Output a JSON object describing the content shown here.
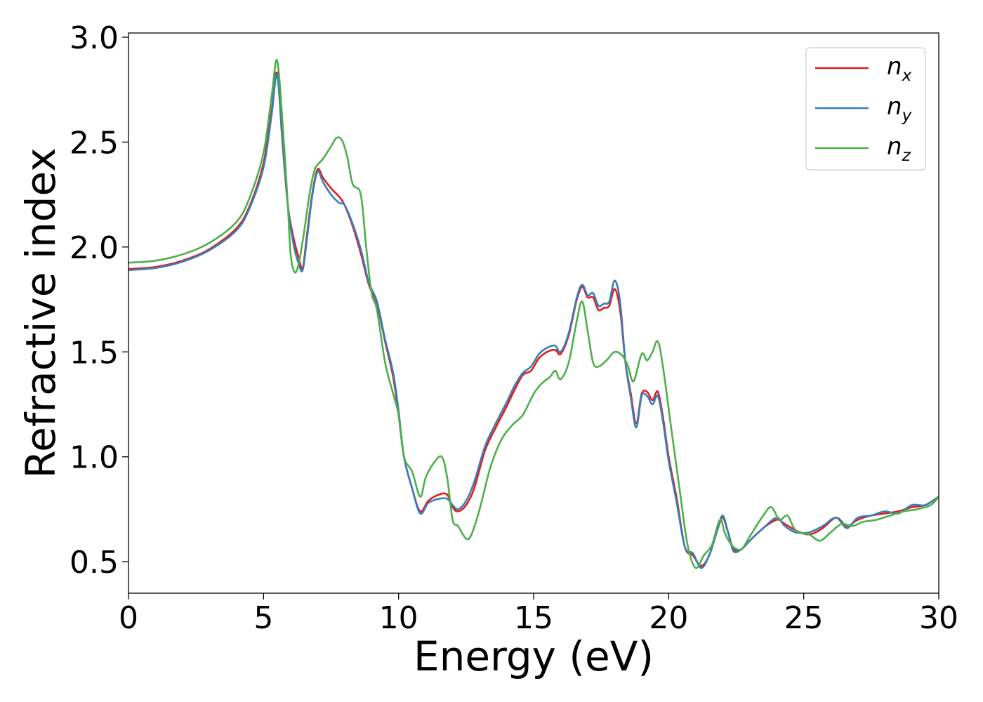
{
  "chart_data": {
    "type": "line",
    "xlabel": "Energy (eV)",
    "ylabel": "Refractive index",
    "xlim": [
      0,
      30
    ],
    "ylim": [
      0.35,
      3.02
    ],
    "xticks": [
      0,
      5,
      10,
      15,
      20,
      25,
      30
    ],
    "yticks": [
      0.5,
      1.0,
      1.5,
      2.0,
      2.5,
      3.0
    ],
    "xtick_labels": [
      "0",
      "5",
      "10",
      "15",
      "20",
      "25",
      "30"
    ],
    "ytick_labels": [
      "0.5",
      "1.0",
      "1.5",
      "2.0",
      "2.5",
      "3.0"
    ],
    "grid": false,
    "legend_position": "top-right",
    "series": [
      {
        "name": "n_x",
        "legend_base": "n",
        "legend_sub": "x",
        "color": "#e41a1c",
        "points": [
          [
            0,
            1.895
          ],
          [
            1,
            1.905
          ],
          [
            2,
            1.935
          ],
          [
            3,
            1.99
          ],
          [
            4,
            2.09
          ],
          [
            4.5,
            2.2
          ],
          [
            5,
            2.4
          ],
          [
            5.3,
            2.65
          ],
          [
            5.5,
            2.83
          ],
          [
            5.7,
            2.5
          ],
          [
            5.9,
            2.2
          ],
          [
            6.1,
            2.05
          ],
          [
            6.3,
            1.95
          ],
          [
            6.45,
            1.9
          ],
          [
            6.6,
            2.05
          ],
          [
            6.8,
            2.25
          ],
          [
            7.0,
            2.37
          ],
          [
            7.2,
            2.33
          ],
          [
            7.5,
            2.28
          ],
          [
            7.8,
            2.24
          ],
          [
            8.0,
            2.2
          ],
          [
            8.3,
            2.1
          ],
          [
            8.6,
            1.97
          ],
          [
            8.9,
            1.82
          ],
          [
            9.2,
            1.73
          ],
          [
            9.5,
            1.55
          ],
          [
            9.8,
            1.38
          ],
          [
            10.0,
            1.2
          ],
          [
            10.2,
            1.0
          ],
          [
            10.5,
            0.85
          ],
          [
            10.8,
            0.74
          ],
          [
            11.1,
            0.79
          ],
          [
            11.5,
            0.82
          ],
          [
            11.8,
            0.82
          ],
          [
            12.0,
            0.76
          ],
          [
            12.2,
            0.74
          ],
          [
            12.5,
            0.77
          ],
          [
            12.8,
            0.85
          ],
          [
            13.2,
            1.03
          ],
          [
            13.6,
            1.14
          ],
          [
            14.0,
            1.24
          ],
          [
            14.3,
            1.32
          ],
          [
            14.6,
            1.39
          ],
          [
            14.9,
            1.41
          ],
          [
            15.2,
            1.47
          ],
          [
            15.5,
            1.5
          ],
          [
            15.8,
            1.51
          ],
          [
            16.0,
            1.49
          ],
          [
            16.3,
            1.58
          ],
          [
            16.6,
            1.75
          ],
          [
            16.8,
            1.81
          ],
          [
            17.0,
            1.76
          ],
          [
            17.2,
            1.76
          ],
          [
            17.4,
            1.7
          ],
          [
            17.6,
            1.71
          ],
          [
            17.8,
            1.72
          ],
          [
            18.0,
            1.8
          ],
          [
            18.2,
            1.7
          ],
          [
            18.4,
            1.45
          ],
          [
            18.6,
            1.3
          ],
          [
            18.8,
            1.16
          ],
          [
            19.0,
            1.3
          ],
          [
            19.2,
            1.31
          ],
          [
            19.4,
            1.27
          ],
          [
            19.6,
            1.31
          ],
          [
            19.8,
            1.18
          ],
          [
            20.0,
            1.0
          ],
          [
            20.3,
            0.8
          ],
          [
            20.6,
            0.57
          ],
          [
            20.9,
            0.53
          ],
          [
            21.2,
            0.48
          ],
          [
            21.5,
            0.53
          ],
          [
            21.8,
            0.65
          ],
          [
            22.0,
            0.71
          ],
          [
            22.2,
            0.64
          ],
          [
            22.4,
            0.56
          ],
          [
            22.7,
            0.56
          ],
          [
            23.0,
            0.6
          ],
          [
            23.5,
            0.66
          ],
          [
            24.0,
            0.7
          ],
          [
            24.3,
            0.68
          ],
          [
            24.7,
            0.65
          ],
          [
            25.2,
            0.63
          ],
          [
            25.7,
            0.66
          ],
          [
            26.2,
            0.71
          ],
          [
            26.6,
            0.67
          ],
          [
            27.0,
            0.7
          ],
          [
            27.5,
            0.72
          ],
          [
            28.0,
            0.73
          ],
          [
            28.5,
            0.74
          ],
          [
            29.0,
            0.76
          ],
          [
            29.5,
            0.77
          ],
          [
            30.0,
            0.81
          ]
        ]
      },
      {
        "name": "n_y",
        "legend_base": "n",
        "legend_sub": "y",
        "color": "#377eb8",
        "points": [
          [
            0,
            1.89
          ],
          [
            1,
            1.9
          ],
          [
            2,
            1.93
          ],
          [
            3,
            1.985
          ],
          [
            4,
            2.08
          ],
          [
            4.5,
            2.19
          ],
          [
            5,
            2.38
          ],
          [
            5.3,
            2.63
          ],
          [
            5.5,
            2.82
          ],
          [
            5.7,
            2.52
          ],
          [
            5.9,
            2.2
          ],
          [
            6.1,
            2.02
          ],
          [
            6.3,
            1.92
          ],
          [
            6.45,
            1.89
          ],
          [
            6.6,
            2.03
          ],
          [
            6.8,
            2.24
          ],
          [
            7.0,
            2.36
          ],
          [
            7.2,
            2.31
          ],
          [
            7.5,
            2.25
          ],
          [
            7.8,
            2.21
          ],
          [
            8.0,
            2.2
          ],
          [
            8.3,
            2.11
          ],
          [
            8.6,
            1.99
          ],
          [
            8.9,
            1.83
          ],
          [
            9.2,
            1.74
          ],
          [
            9.5,
            1.56
          ],
          [
            9.8,
            1.4
          ],
          [
            10.0,
            1.22
          ],
          [
            10.2,
            1.0
          ],
          [
            10.5,
            0.85
          ],
          [
            10.8,
            0.73
          ],
          [
            11.1,
            0.78
          ],
          [
            11.5,
            0.8
          ],
          [
            11.8,
            0.8
          ],
          [
            12.0,
            0.77
          ],
          [
            12.2,
            0.75
          ],
          [
            12.5,
            0.79
          ],
          [
            12.8,
            0.88
          ],
          [
            13.2,
            1.05
          ],
          [
            13.6,
            1.16
          ],
          [
            14.0,
            1.26
          ],
          [
            14.3,
            1.34
          ],
          [
            14.6,
            1.4
          ],
          [
            14.9,
            1.43
          ],
          [
            15.2,
            1.49
          ],
          [
            15.5,
            1.52
          ],
          [
            15.8,
            1.53
          ],
          [
            16.0,
            1.5
          ],
          [
            16.3,
            1.59
          ],
          [
            16.6,
            1.76
          ],
          [
            16.8,
            1.82
          ],
          [
            17.0,
            1.77
          ],
          [
            17.2,
            1.78
          ],
          [
            17.4,
            1.72
          ],
          [
            17.6,
            1.73
          ],
          [
            17.8,
            1.74
          ],
          [
            18.0,
            1.84
          ],
          [
            18.2,
            1.74
          ],
          [
            18.4,
            1.45
          ],
          [
            18.6,
            1.28
          ],
          [
            18.8,
            1.14
          ],
          [
            19.0,
            1.29
          ],
          [
            19.2,
            1.29
          ],
          [
            19.4,
            1.25
          ],
          [
            19.6,
            1.29
          ],
          [
            19.8,
            1.16
          ],
          [
            20.0,
            0.98
          ],
          [
            20.3,
            0.78
          ],
          [
            20.6,
            0.57
          ],
          [
            20.9,
            0.54
          ],
          [
            21.2,
            0.47
          ],
          [
            21.5,
            0.53
          ],
          [
            21.8,
            0.65
          ],
          [
            22.0,
            0.72
          ],
          [
            22.2,
            0.64
          ],
          [
            22.4,
            0.55
          ],
          [
            22.7,
            0.56
          ],
          [
            23.0,
            0.6
          ],
          [
            23.5,
            0.66
          ],
          [
            24.0,
            0.71
          ],
          [
            24.3,
            0.67
          ],
          [
            24.7,
            0.64
          ],
          [
            25.2,
            0.64
          ],
          [
            25.7,
            0.67
          ],
          [
            26.2,
            0.71
          ],
          [
            26.6,
            0.66
          ],
          [
            27.0,
            0.71
          ],
          [
            27.5,
            0.72
          ],
          [
            28.0,
            0.74
          ],
          [
            28.5,
            0.73
          ],
          [
            29.0,
            0.77
          ],
          [
            29.5,
            0.77
          ],
          [
            30.0,
            0.81
          ]
        ]
      },
      {
        "name": "n_z",
        "legend_base": "n",
        "legend_sub": "z",
        "color": "#4daf4a",
        "points": [
          [
            0,
            1.925
          ],
          [
            1,
            1.935
          ],
          [
            2,
            1.965
          ],
          [
            3,
            2.02
          ],
          [
            4,
            2.12
          ],
          [
            4.5,
            2.24
          ],
          [
            5,
            2.45
          ],
          [
            5.3,
            2.72
          ],
          [
            5.5,
            2.89
          ],
          [
            5.7,
            2.6
          ],
          [
            5.9,
            2.2
          ],
          [
            6.0,
            1.97
          ],
          [
            6.15,
            1.88
          ],
          [
            6.3,
            1.92
          ],
          [
            6.5,
            2.07
          ],
          [
            6.7,
            2.25
          ],
          [
            6.9,
            2.37
          ],
          [
            7.2,
            2.42
          ],
          [
            7.5,
            2.48
          ],
          [
            7.7,
            2.52
          ],
          [
            7.9,
            2.51
          ],
          [
            8.1,
            2.43
          ],
          [
            8.3,
            2.3
          ],
          [
            8.6,
            2.25
          ],
          [
            8.8,
            2.0
          ],
          [
            9.0,
            1.78
          ],
          [
            9.2,
            1.7
          ],
          [
            9.5,
            1.45
          ],
          [
            9.8,
            1.3
          ],
          [
            10.0,
            1.2
          ],
          [
            10.2,
            1.0
          ],
          [
            10.5,
            0.93
          ],
          [
            10.8,
            0.81
          ],
          [
            11.0,
            0.9
          ],
          [
            11.3,
            0.97
          ],
          [
            11.6,
            1.0
          ],
          [
            11.8,
            0.9
          ],
          [
            12.0,
            0.7
          ],
          [
            12.2,
            0.67
          ],
          [
            12.5,
            0.61
          ],
          [
            12.7,
            0.63
          ],
          [
            13.0,
            0.75
          ],
          [
            13.4,
            0.95
          ],
          [
            13.8,
            1.08
          ],
          [
            14.2,
            1.15
          ],
          [
            14.6,
            1.2
          ],
          [
            15.0,
            1.3
          ],
          [
            15.3,
            1.35
          ],
          [
            15.6,
            1.38
          ],
          [
            15.8,
            1.41
          ],
          [
            16.0,
            1.37
          ],
          [
            16.3,
            1.45
          ],
          [
            16.6,
            1.65
          ],
          [
            16.8,
            1.74
          ],
          [
            17.0,
            1.6
          ],
          [
            17.2,
            1.45
          ],
          [
            17.4,
            1.43
          ],
          [
            17.7,
            1.46
          ],
          [
            18.0,
            1.5
          ],
          [
            18.3,
            1.48
          ],
          [
            18.5,
            1.43
          ],
          [
            18.7,
            1.36
          ],
          [
            19.0,
            1.49
          ],
          [
            19.2,
            1.46
          ],
          [
            19.4,
            1.5
          ],
          [
            19.6,
            1.55
          ],
          [
            19.8,
            1.42
          ],
          [
            20.1,
            1.13
          ],
          [
            20.4,
            0.85
          ],
          [
            20.7,
            0.58
          ],
          [
            21.0,
            0.47
          ],
          [
            21.3,
            0.53
          ],
          [
            21.6,
            0.58
          ],
          [
            21.9,
            0.7
          ],
          [
            22.1,
            0.63
          ],
          [
            22.4,
            0.57
          ],
          [
            22.7,
            0.56
          ],
          [
            23.0,
            0.62
          ],
          [
            23.5,
            0.72
          ],
          [
            23.8,
            0.76
          ],
          [
            24.1,
            0.7
          ],
          [
            24.4,
            0.72
          ],
          [
            24.7,
            0.65
          ],
          [
            25.2,
            0.63
          ],
          [
            25.6,
            0.6
          ],
          [
            26.0,
            0.64
          ],
          [
            26.4,
            0.68
          ],
          [
            26.8,
            0.67
          ],
          [
            27.2,
            0.69
          ],
          [
            27.7,
            0.7
          ],
          [
            28.2,
            0.72
          ],
          [
            28.7,
            0.74
          ],
          [
            29.2,
            0.75
          ],
          [
            29.7,
            0.77
          ],
          [
            30.0,
            0.81
          ]
        ]
      }
    ]
  }
}
